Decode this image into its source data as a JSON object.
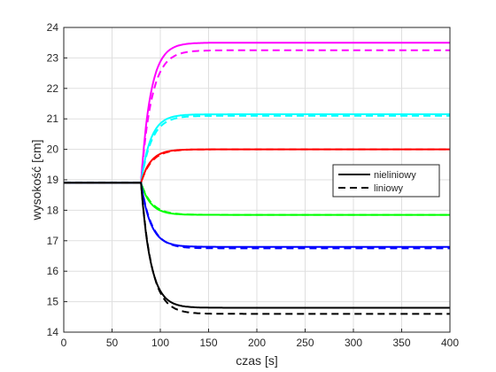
{
  "chart_data": {
    "type": "line",
    "xlabel": "czas [s]",
    "ylabel": "wysokość [cm]",
    "xlim": [
      0,
      400
    ],
    "ylim": [
      14,
      24
    ],
    "xticks": [
      0,
      50,
      100,
      150,
      200,
      250,
      300,
      350,
      400
    ],
    "yticks": [
      14,
      15,
      16,
      17,
      18,
      19,
      20,
      21,
      22,
      23,
      24
    ],
    "grid": true,
    "legend_position": "right",
    "legend": [
      {
        "label": "nieliniowy",
        "style": "solid"
      },
      {
        "label": "liniowy",
        "style": "dashed"
      }
    ],
    "step_time": 80,
    "initial_value": 18.9,
    "series": [
      {
        "color": "#ff00ff",
        "nonlinear_final": 23.5,
        "linear_final": 23.25
      },
      {
        "color": "#00ffff",
        "nonlinear_final": 21.15,
        "linear_final": 21.1
      },
      {
        "color": "#ff0000",
        "nonlinear_final": 20.0,
        "linear_final": 20.0
      },
      {
        "color": "#00ff00",
        "nonlinear_final": 17.85,
        "linear_final": 17.85
      },
      {
        "color": "#0000ff",
        "nonlinear_final": 16.8,
        "linear_final": 16.75
      },
      {
        "color": "#000000",
        "nonlinear_final": 14.8,
        "linear_final": 14.6
      }
    ]
  }
}
